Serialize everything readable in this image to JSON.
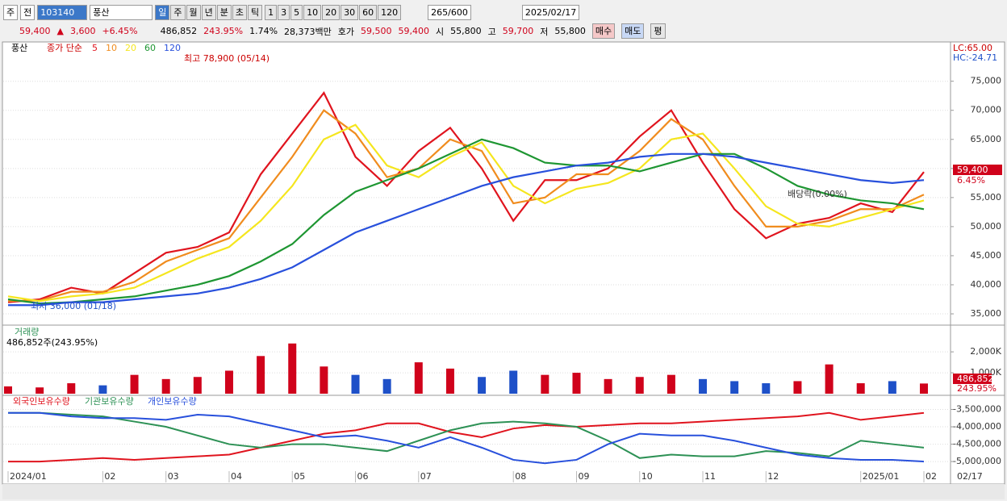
{
  "toolbar": {
    "market": "주",
    "mode": "전",
    "code": "103140",
    "name": "풍산",
    "periods": [
      "일",
      "주",
      "월",
      "년",
      "분",
      "초",
      "틱"
    ],
    "intervals": [
      "1",
      "3",
      "5",
      "10",
      "20",
      "30",
      "60",
      "120"
    ],
    "count": "265/600",
    "date": "2025/02/17"
  },
  "quote": {
    "price": "59,400",
    "arrow": "▲",
    "change": "3,600",
    "change_pct": "+6.45%",
    "volume": "486,852",
    "volume_ratio": "243.95%",
    "turnover": "1.74%",
    "amount": "28,373백만",
    "ask_label": "호가",
    "ask": "59,500",
    "bid": "59,400",
    "open_label": "시",
    "open": "55,800",
    "high_label": "고",
    "high": "59,700",
    "low_label": "저",
    "low": "55,800",
    "buy": "매수",
    "sell": "매도",
    "avg": "평"
  },
  "chart_data": [
    {
      "type": "line",
      "title": "풍산",
      "legend_prefix": "종가 단순",
      "categories": [
        "2024/01",
        null,
        null,
        "02",
        null,
        "03",
        null,
        "04",
        null,
        "05",
        null,
        "06",
        null,
        "07",
        null,
        null,
        "08",
        null,
        "09",
        null,
        "10",
        null,
        "11",
        null,
        "12",
        null,
        null,
        "2025/01",
        null,
        "02"
      ],
      "series": [
        {
          "name": "5",
          "color": "#e0141e",
          "values": [
            37000,
            37500,
            39500,
            38500,
            42000,
            45500,
            46500,
            49000,
            59000,
            66000,
            73000,
            62000,
            57000,
            63000,
            67000,
            60000,
            51000,
            58000,
            58000,
            60000,
            65500,
            70000,
            61000,
            53000,
            48000,
            50500,
            51500,
            54000,
            52500,
            59400
          ]
        },
        {
          "name": "10",
          "color": "#f08c1e",
          "values": [
            37200,
            37300,
            38800,
            38800,
            40500,
            44000,
            46000,
            48000,
            55000,
            62000,
            70000,
            66000,
            58500,
            60000,
            65000,
            63000,
            54000,
            55000,
            59000,
            59000,
            63000,
            68500,
            65000,
            57000,
            50000,
            50000,
            51000,
            53000,
            53000,
            55500
          ]
        },
        {
          "name": "20",
          "color": "#f5e61e",
          "values": [
            38000,
            37200,
            38000,
            38500,
            39500,
            42000,
            44500,
            46500,
            51000,
            57000,
            65000,
            67500,
            60500,
            58500,
            62000,
            64500,
            57000,
            54000,
            56500,
            57500,
            60000,
            65000,
            66000,
            60000,
            53500,
            50500,
            50000,
            51500,
            53000,
            54500
          ]
        },
        {
          "name": "60",
          "color": "#1e9632",
          "values": [
            37500,
            36800,
            37000,
            37500,
            38000,
            39000,
            40000,
            41500,
            44000,
            47000,
            52000,
            56000,
            58000,
            60000,
            62500,
            65000,
            63500,
            61000,
            60500,
            60500,
            59500,
            61000,
            62500,
            62500,
            60000,
            57000,
            55500,
            54500,
            54000,
            53000
          ]
        },
        {
          "name": "120",
          "color": "#2850dc",
          "values": [
            36500,
            36500,
            37000,
            37000,
            37500,
            38000,
            38500,
            39500,
            41000,
            43000,
            46000,
            49000,
            51000,
            53000,
            55000,
            57000,
            58500,
            59500,
            60500,
            61000,
            62000,
            62500,
            62500,
            62000,
            61000,
            60000,
            59000,
            58000,
            57500,
            58000
          ]
        }
      ],
      "ylim": [
        33200,
        81200
      ],
      "yticks": [
        {
          "value": 35000,
          "label": "35,000"
        },
        {
          "value": 40000,
          "label": "40,000"
        },
        {
          "value": 45000,
          "label": "45,000"
        },
        {
          "value": 50000,
          "label": "50,000"
        },
        {
          "value": 55000,
          "label": "55,000"
        },
        {
          "value": 60000,
          "label": "60,000"
        },
        {
          "value": 65000,
          "label": "65,000"
        },
        {
          "value": 70000,
          "label": "70,000"
        },
        {
          "value": 75000,
          "label": "75,000"
        }
      ],
      "grid": true,
      "annotations": {
        "high": "최고 78,900 (05/14)",
        "low": "최저 36,000 (01/18)",
        "dividend": "배당락(0.00%)"
      },
      "lc": "LC:65.00",
      "hc": "HC:-24.71",
      "last_price": "59,400",
      "last_change": "6.45%"
    },
    {
      "type": "bar",
      "title": "거래량",
      "subtitle": "486,852주(243.95%)",
      "up_color": "#d0021b",
      "down_color": "#1e50c8",
      "values": [
        350000,
        300000,
        500000,
        400000,
        900000,
        700000,
        800000,
        1100000,
        1800000,
        2400000,
        1300000,
        900000,
        700000,
        1500000,
        1200000,
        800000,
        1100000,
        900000,
        1000000,
        700000,
        800000,
        900000,
        700000,
        600000,
        500000,
        600000,
        1400000,
        500000,
        600000,
        486852
      ],
      "ylim": [
        0,
        3200000
      ],
      "yticks": [
        {
          "value": 1000000,
          "label": "1,000K"
        },
        {
          "value": 2000000,
          "label": "2,000K"
        }
      ],
      "last_volume": "486,852",
      "last_ratio": "243.95%"
    },
    {
      "type": "line",
      "series": [
        {
          "name": "외국인보유수량",
          "color": "#e0141e",
          "values": [
            -5000000,
            -5000000,
            -4950000,
            -4900000,
            -4950000,
            -4900000,
            -4850000,
            -4800000,
            -4600000,
            -4400000,
            -4200000,
            -4100000,
            -3900000,
            -3900000,
            -4150000,
            -4300000,
            -4050000,
            -3950000,
            -4000000,
            -3950000,
            -3900000,
            -3900000,
            -3850000,
            -3800000,
            -3750000,
            -3700000,
            -3600000,
            -3800000,
            -3700000,
            -3600000
          ]
        },
        {
          "name": "기관보유수량",
          "color": "#2d9155",
          "values": [
            -3600000,
            -3600000,
            -3650000,
            -3700000,
            -3850000,
            -4000000,
            -4250000,
            -4500000,
            -4600000,
            -4500000,
            -4500000,
            -4600000,
            -4700000,
            -4400000,
            -4100000,
            -3900000,
            -3850000,
            -3900000,
            -4000000,
            -4400000,
            -4900000,
            -4800000,
            -4850000,
            -4850000,
            -4700000,
            -4750000,
            -4850000,
            -4400000,
            -4500000,
            -4600000
          ]
        },
        {
          "name": "개인보유수량",
          "color": "#2850dc",
          "values": [
            -3600000,
            -3600000,
            -3700000,
            -3750000,
            -3750000,
            -3800000,
            -3650000,
            -3700000,
            -3900000,
            -4100000,
            -4300000,
            -4250000,
            -4400000,
            -4600000,
            -4300000,
            -4600000,
            -4950000,
            -5050000,
            -4950000,
            -4500000,
            -4200000,
            -4250000,
            -4250000,
            -4400000,
            -4600000,
            -4800000,
            -4900000,
            -4950000,
            -4950000,
            -5000000
          ]
        }
      ],
      "ylim": [
        -5230000,
        -3140000
      ],
      "yticks": [
        {
          "value": -5000000,
          "label": "-5,000,000"
        },
        {
          "value": -4500000,
          "label": "-4,500,000"
        },
        {
          "value": -4000000,
          "label": "-4,000,000"
        },
        {
          "value": -3500000,
          "label": "-3,500,000"
        }
      ]
    }
  ],
  "x_end_label": "02/17"
}
